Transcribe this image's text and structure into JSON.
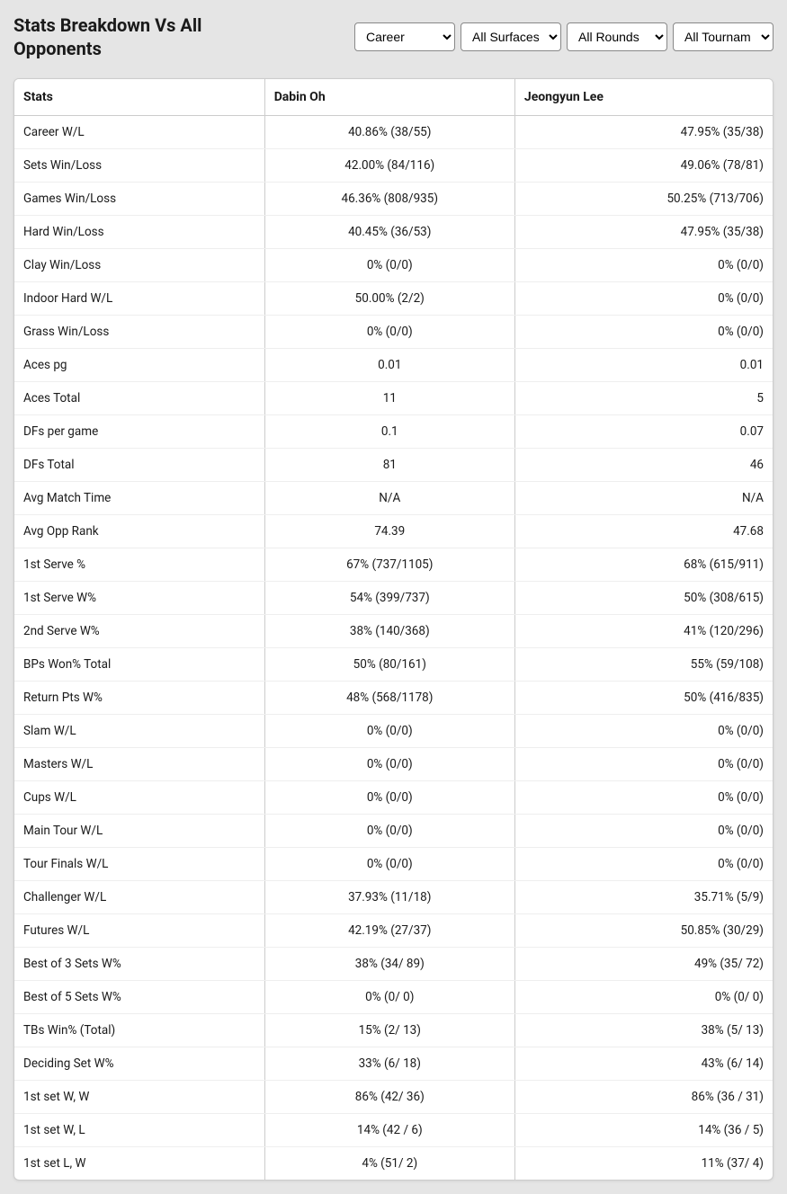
{
  "title": "Stats Breakdown Vs All Opponents",
  "filters": {
    "period": "Career",
    "surface": "All Surfaces",
    "round": "All Rounds",
    "tournament": "All Tournaments"
  },
  "columns": {
    "stat": "Stats",
    "player1": "Dabin Oh",
    "player2": "Jeongyun Lee"
  },
  "rows": [
    {
      "stat": "Career W/L",
      "p1": "40.86% (38/55)",
      "p2": "47.95% (35/38)"
    },
    {
      "stat": "Sets Win/Loss",
      "p1": "42.00% (84/116)",
      "p2": "49.06% (78/81)"
    },
    {
      "stat": "Games Win/Loss",
      "p1": "46.36% (808/935)",
      "p2": "50.25% (713/706)"
    },
    {
      "stat": "Hard Win/Loss",
      "p1": "40.45% (36/53)",
      "p2": "47.95% (35/38)"
    },
    {
      "stat": "Clay Win/Loss",
      "p1": "0% (0/0)",
      "p2": "0% (0/0)"
    },
    {
      "stat": "Indoor Hard W/L",
      "p1": "50.00% (2/2)",
      "p2": "0% (0/0)"
    },
    {
      "stat": "Grass Win/Loss",
      "p1": "0% (0/0)",
      "p2": "0% (0/0)"
    },
    {
      "stat": "Aces pg",
      "p1": "0.01",
      "p2": "0.01"
    },
    {
      "stat": "Aces Total",
      "p1": "11",
      "p2": "5"
    },
    {
      "stat": "DFs per game",
      "p1": "0.1",
      "p2": "0.07"
    },
    {
      "stat": "DFs Total",
      "p1": "81",
      "p2": "46"
    },
    {
      "stat": "Avg Match Time",
      "p1": "N/A",
      "p2": "N/A"
    },
    {
      "stat": "Avg Opp Rank",
      "p1": "74.39",
      "p2": "47.68"
    },
    {
      "stat": "1st Serve %",
      "p1": "67% (737/1105)",
      "p2": "68% (615/911)"
    },
    {
      "stat": "1st Serve W%",
      "p1": "54% (399/737)",
      "p2": "50% (308/615)"
    },
    {
      "stat": "2nd Serve W%",
      "p1": "38% (140/368)",
      "p2": "41% (120/296)"
    },
    {
      "stat": "BPs Won% Total",
      "p1": "50% (80/161)",
      "p2": "55% (59/108)"
    },
    {
      "stat": "Return Pts W%",
      "p1": "48% (568/1178)",
      "p2": "50% (416/835)"
    },
    {
      "stat": "Slam W/L",
      "p1": "0% (0/0)",
      "p2": "0% (0/0)"
    },
    {
      "stat": "Masters W/L",
      "p1": "0% (0/0)",
      "p2": "0% (0/0)"
    },
    {
      "stat": "Cups W/L",
      "p1": "0% (0/0)",
      "p2": "0% (0/0)"
    },
    {
      "stat": "Main Tour W/L",
      "p1": "0% (0/0)",
      "p2": "0% (0/0)"
    },
    {
      "stat": "Tour Finals W/L",
      "p1": "0% (0/0)",
      "p2": "0% (0/0)"
    },
    {
      "stat": "Challenger W/L",
      "p1": "37.93% (11/18)",
      "p2": "35.71% (5/9)"
    },
    {
      "stat": "Futures W/L",
      "p1": "42.19% (27/37)",
      "p2": "50.85% (30/29)"
    },
    {
      "stat": "Best of 3 Sets W%",
      "p1": "38% (34/ 89)",
      "p2": "49% (35/ 72)"
    },
    {
      "stat": "Best of 5 Sets W%",
      "p1": "0% (0/ 0)",
      "p2": "0% (0/ 0)"
    },
    {
      "stat": "TBs Win% (Total)",
      "p1": "15% (2/ 13)",
      "p2": "38% (5/ 13)"
    },
    {
      "stat": "Deciding Set W%",
      "p1": "33% (6/ 18)",
      "p2": "43% (6/ 14)"
    },
    {
      "stat": "1st set W, W",
      "p1": "86% (42/ 36)",
      "p2": "86% (36 / 31)"
    },
    {
      "stat": "1st set W, L",
      "p1": "14% (42 / 6)",
      "p2": "14% (36 / 5)"
    },
    {
      "stat": "1st set L, W",
      "p1": "4% (51/ 2)",
      "p2": "11% (37/ 4)"
    }
  ]
}
